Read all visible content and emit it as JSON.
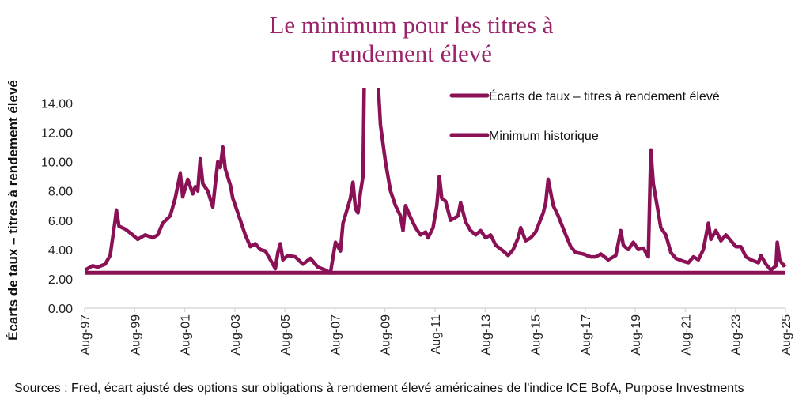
{
  "chart_data": {
    "type": "line",
    "title": "Le minimum pour les titres à rendement élevé",
    "title_lines": [
      "Le minimum pour les titres à",
      "rendement élevé"
    ],
    "xlabel": "",
    "ylabel": "Écarts de taux – titres à rendement élevé",
    "ylim": [
      0,
      15
    ],
    "xlim": [
      1997.58,
      2025.58
    ],
    "yticks": [
      "0.00",
      "2.00",
      "4.00",
      "6.00",
      "8.00",
      "10.00",
      "12.00",
      "14.00"
    ],
    "xticks": [
      "Aug-97",
      "Aug-99",
      "Aug-01",
      "Aug-03",
      "Aug-05",
      "Aug-07",
      "Aug-09",
      "Aug-11",
      "Aug-13",
      "Aug-15",
      "Aug-17",
      "Aug-19",
      "Aug-21",
      "Aug-23",
      "Aug-25"
    ],
    "legend_position": "top-right",
    "color": "#8b1157",
    "series": [
      {
        "name": "Écarts de taux – titres à rendement élevé",
        "x": [
          1997.6,
          1997.9,
          1998.1,
          1998.4,
          1998.6,
          1998.8,
          1998.85,
          1998.95,
          1999.2,
          1999.5,
          1999.7,
          2000.0,
          2000.3,
          2000.5,
          2000.7,
          2001.0,
          2001.2,
          2001.4,
          2001.5,
          2001.7,
          2001.9,
          2002.0,
          2002.1,
          2002.2,
          2002.3,
          2002.5,
          2002.7,
          2002.8,
          2002.9,
          2003.0,
          2003.1,
          2003.2,
          2003.4,
          2003.5,
          2003.7,
          2004.0,
          2004.2,
          2004.4,
          2004.6,
          2004.8,
          2005.0,
          2005.2,
          2005.3,
          2005.4,
          2005.5,
          2005.7,
          2006.0,
          2006.3,
          2006.6,
          2006.9,
          2007.2,
          2007.4,
          2007.6,
          2007.8,
          2007.9,
          2008.2,
          2008.3,
          2008.4,
          2008.5,
          2008.6,
          2008.7,
          2008.75,
          2008.95,
          2009.2,
          2009.3,
          2009.4,
          2009.6,
          2009.8,
          2010.0,
          2010.2,
          2010.3,
          2010.4,
          2010.6,
          2010.8,
          2011.0,
          2011.2,
          2011.3,
          2011.5,
          2011.65,
          2011.75,
          2011.85,
          2012.0,
          2012.2,
          2012.5,
          2012.6,
          2012.8,
          2013.0,
          2013.2,
          2013.4,
          2013.6,
          2013.8,
          2014.0,
          2014.3,
          2014.5,
          2014.7,
          2014.9,
          2015.0,
          2015.2,
          2015.4,
          2015.6,
          2015.9,
          2016.0,
          2016.1,
          2016.3,
          2016.5,
          2016.8,
          2017.0,
          2017.2,
          2017.5,
          2017.8,
          2018.0,
          2018.2,
          2018.5,
          2018.8,
          2019.0,
          2019.1,
          2019.3,
          2019.5,
          2019.7,
          2019.9,
          2020.1,
          2020.2,
          2020.3,
          2020.5,
          2020.6,
          2020.8,
          2021.0,
          2021.2,
          2021.5,
          2021.7,
          2021.9,
          2022.1,
          2022.3,
          2022.5,
          2022.6,
          2022.8,
          2023.0,
          2023.2,
          2023.4,
          2023.6,
          2023.8,
          2024.0,
          2024.2,
          2024.5,
          2024.6,
          2024.8,
          2025.0,
          2025.2,
          2025.25,
          2025.35,
          2025.5,
          2025.58
        ],
        "y": [
          2.6,
          2.9,
          2.8,
          3.0,
          3.6,
          6.0,
          6.7,
          5.6,
          5.4,
          5.0,
          4.7,
          5.0,
          4.8,
          5.0,
          5.8,
          6.3,
          7.5,
          9.2,
          7.6,
          8.8,
          7.8,
          8.3,
          8.0,
          10.2,
          8.5,
          8.0,
          6.9,
          8.5,
          10.0,
          9.6,
          11.0,
          9.5,
          8.4,
          7.5,
          6.5,
          5.0,
          4.2,
          4.4,
          4.0,
          3.9,
          3.3,
          2.7,
          3.8,
          4.4,
          3.3,
          3.6,
          3.5,
          3.0,
          3.4,
          2.8,
          2.6,
          2.4,
          4.5,
          3.9,
          5.8,
          7.5,
          8.6,
          6.8,
          6.5,
          7.9,
          9.0,
          15.5,
          19.0,
          19.0,
          15.5,
          12.5,
          10.0,
          8.0,
          7.0,
          6.3,
          5.3,
          7.0,
          6.2,
          5.5,
          5.0,
          5.2,
          4.8,
          5.5,
          7.0,
          9.0,
          7.5,
          7.3,
          6.0,
          6.3,
          7.2,
          5.9,
          5.3,
          5.0,
          5.3,
          4.8,
          5.0,
          4.3,
          3.9,
          3.6,
          4.0,
          4.8,
          5.5,
          4.6,
          4.8,
          5.2,
          6.5,
          7.2,
          8.8,
          7.0,
          6.3,
          5.0,
          4.2,
          3.8,
          3.7,
          3.5,
          3.5,
          3.7,
          3.3,
          3.6,
          5.3,
          4.3,
          4.0,
          4.5,
          4.0,
          4.1,
          3.5,
          10.8,
          8.5,
          6.5,
          5.5,
          5.0,
          3.8,
          3.4,
          3.2,
          3.1,
          3.5,
          3.3,
          4.0,
          5.8,
          4.7,
          5.3,
          4.6,
          5.0,
          4.6,
          4.2,
          4.2,
          3.5,
          3.3,
          3.1,
          3.6,
          3.0,
          2.6,
          2.9,
          4.5,
          3.3,
          2.9,
          3.0
        ]
      },
      {
        "name": "Minimum historique",
        "x": [
          1997.58,
          2025.58
        ],
        "y": [
          2.41,
          2.41
        ]
      }
    ]
  },
  "source": "Sources : Fred, écart ajusté des options sur obligations à rendement élevé américaines de l'indice ICE BofA, Purpose Investments"
}
